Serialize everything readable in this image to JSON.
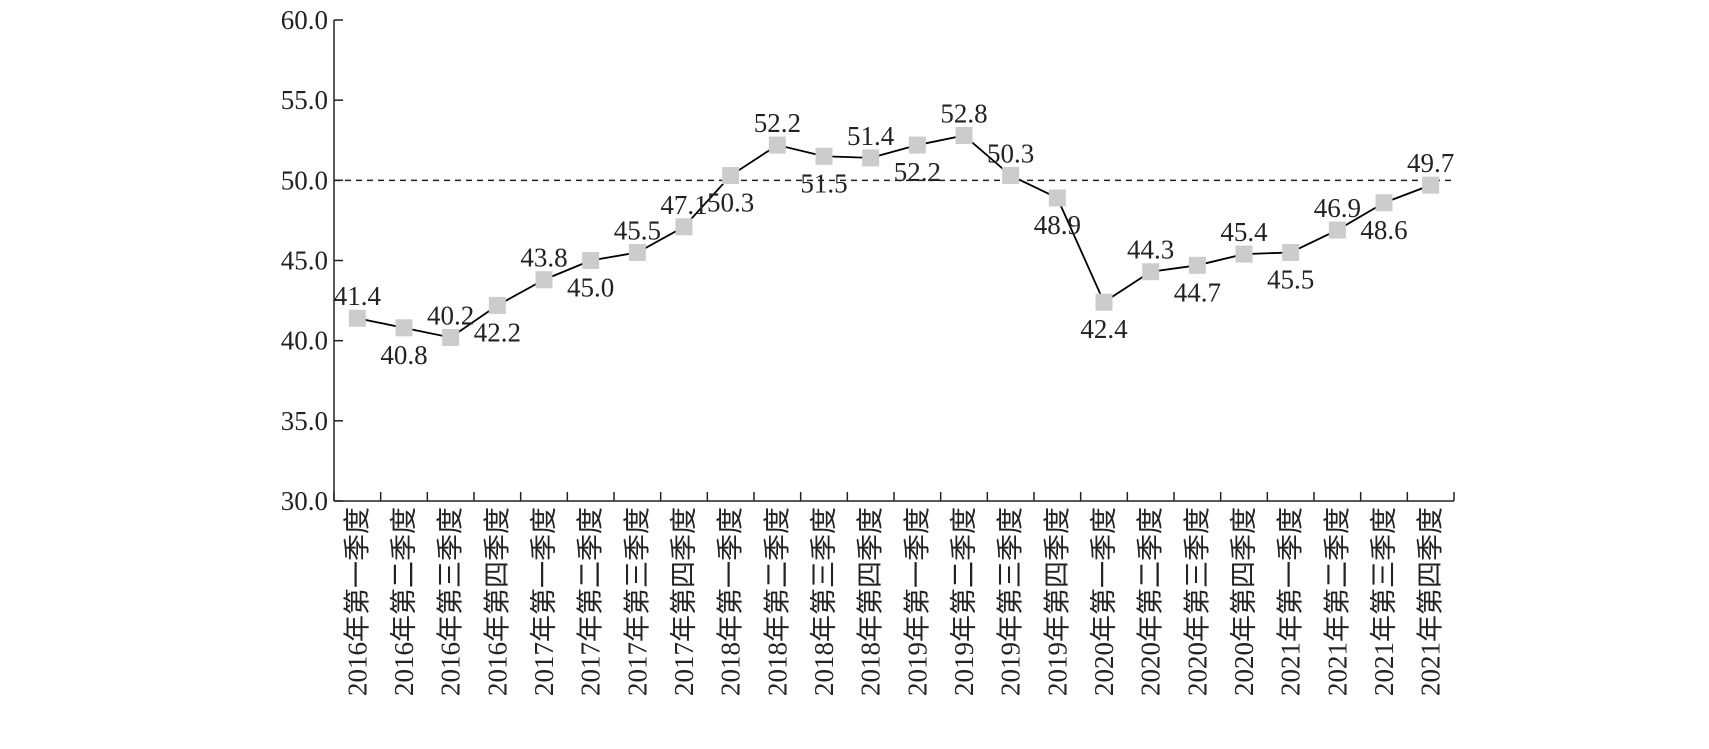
{
  "chart_data": {
    "type": "line",
    "categories": [
      "2016年第一季度",
      "2016年第二季度",
      "2016年第三季度",
      "2016年第四季度",
      "2017年第一季度",
      "2017年第二季度",
      "2017年第三季度",
      "2017年第四季度",
      "2018年第一季度",
      "2018年第二季度",
      "2018年第三季度",
      "2018年第四季度",
      "2019年第一季度",
      "2019年第二季度",
      "2019年第三季度",
      "2019年第四季度",
      "2020年第一季度",
      "2020年第二季度",
      "2020年第三季度",
      "2020年第四季度",
      "2021年第一季度",
      "2021年第二季度",
      "2021年第三季度",
      "2021年第四季度"
    ],
    "values": [
      41.4,
      40.8,
      40.2,
      42.2,
      43.8,
      45.0,
      45.5,
      47.1,
      50.3,
      52.2,
      51.5,
      51.4,
      52.2,
      52.8,
      50.3,
      48.9,
      42.4,
      44.3,
      44.7,
      45.4,
      45.5,
      46.9,
      48.6,
      49.7
    ],
    "value_labels": [
      "41.4",
      "40.8",
      "40.2",
      "42.2",
      "43.8",
      "45.0",
      "45.5",
      "47.1",
      "50.3",
      "52.2",
      "51.5",
      "51.4",
      "52.2",
      "52.8",
      "50.3",
      "48.9",
      "42.4",
      "44.3",
      "44.7",
      "45.4",
      "45.5",
      "46.9",
      "48.6",
      "49.7"
    ],
    "color": "#000000",
    "marker_color": "#cccccc",
    "reference_line": 50,
    "ylim": [
      30,
      60
    ],
    "yticks": [
      {
        "value": 30,
        "label": "30.0"
      },
      {
        "value": 35,
        "label": "35.0"
      },
      {
        "value": 40,
        "label": "40.0"
      },
      {
        "value": 45,
        "label": "45.0"
      },
      {
        "value": 50,
        "label": "50.0"
      },
      {
        "value": 55,
        "label": "55.0"
      },
      {
        "value": 60,
        "label": "60.0"
      }
    ]
  }
}
